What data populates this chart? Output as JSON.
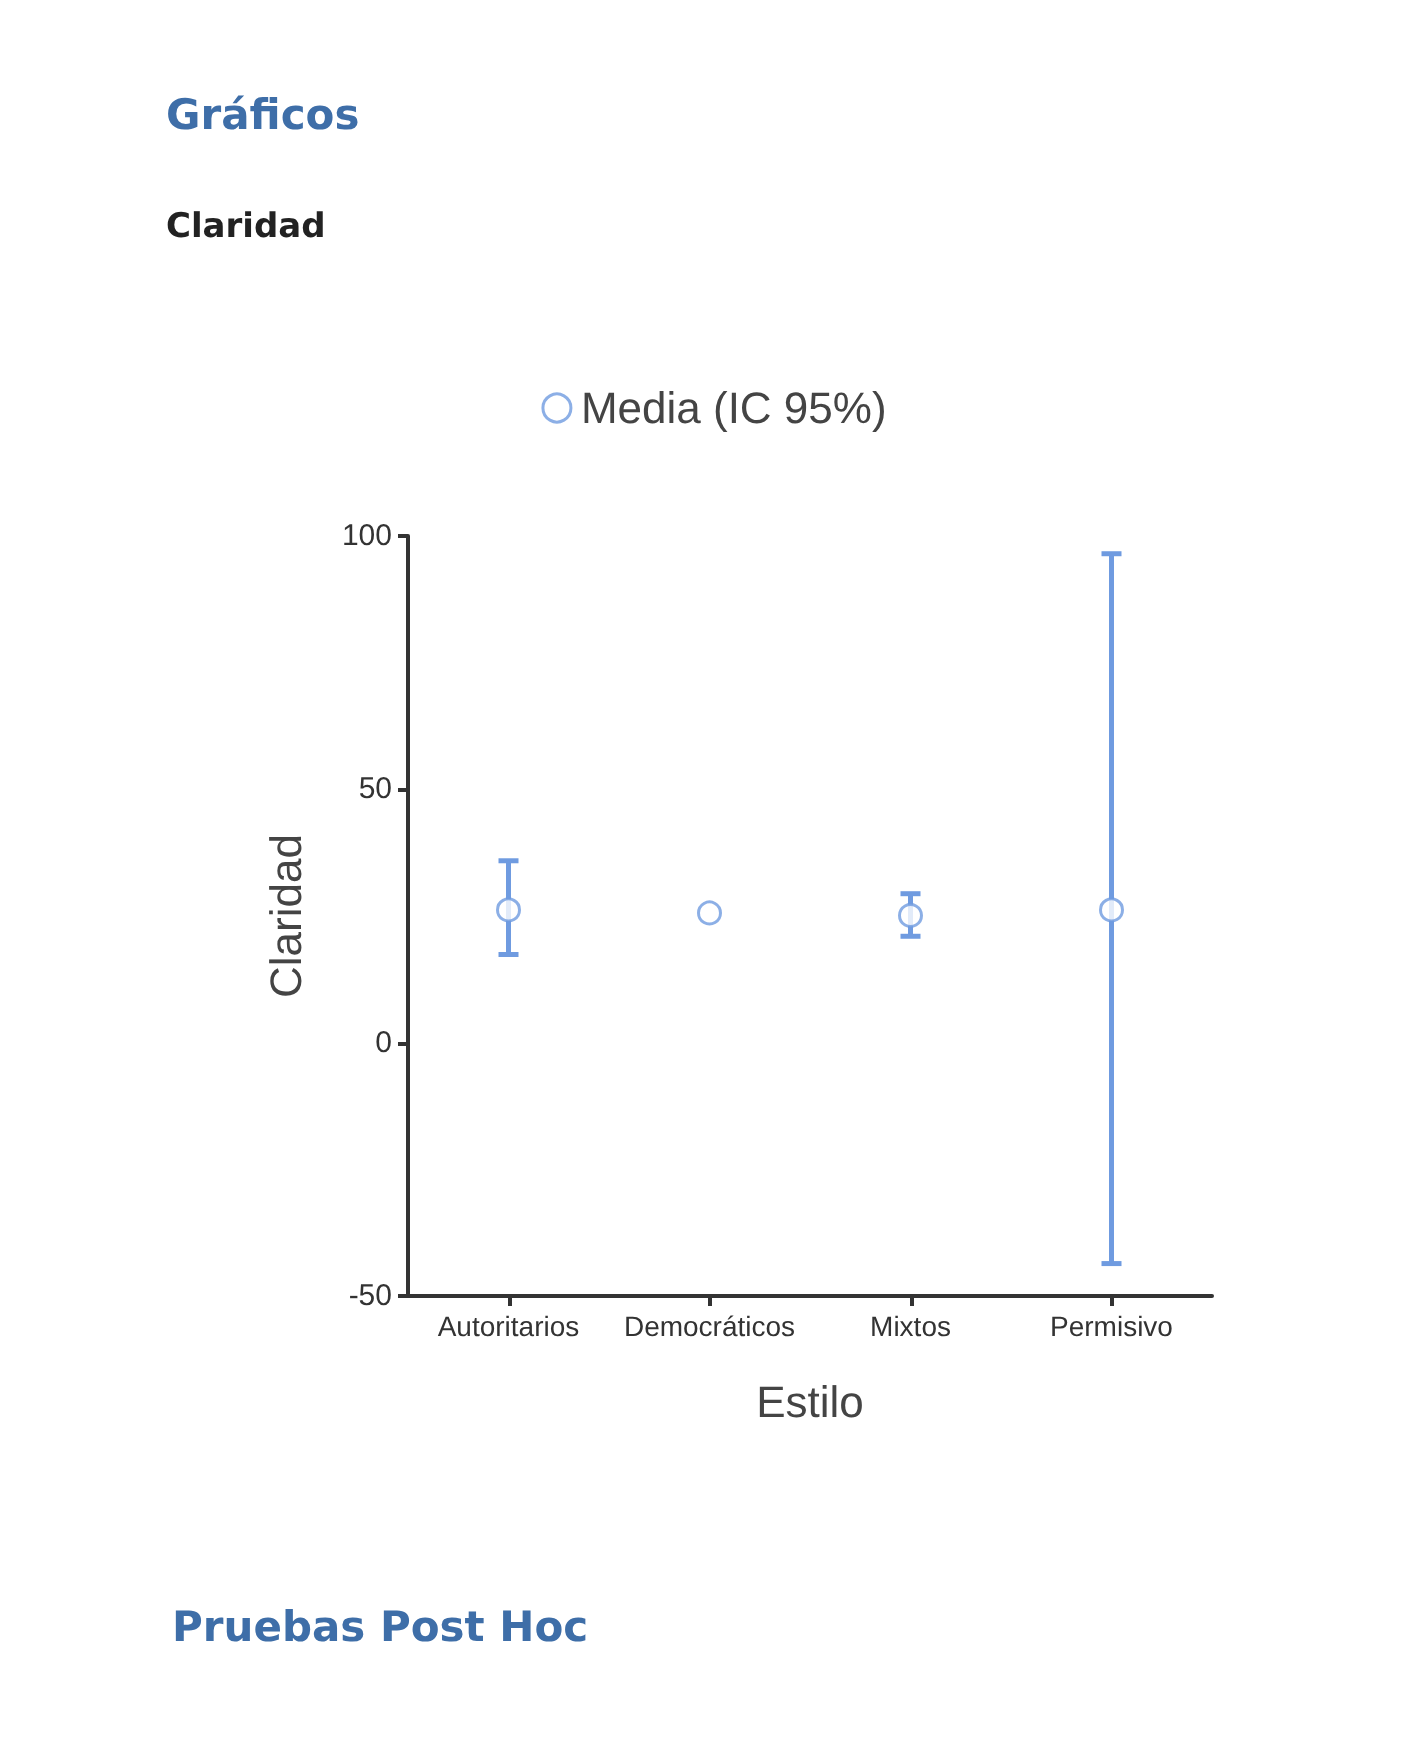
{
  "chart_data": {
    "type": "scatter",
    "title": "Gráficos",
    "subtitle": "Claridad",
    "annotations": [
      "Pruebas Post Hoc"
    ],
    "xlabel": "Estilo",
    "ylabel": "Claridad",
    "categories": [
      "Autoritarios",
      "Democráticos",
      "Mixtos",
      "Permisivo"
    ],
    "series": [
      {
        "name": "Media (IC 95%)",
        "color": "#6f9be0",
        "values": [
          26.2,
          25.6,
          25.1,
          26.2
        ],
        "errors": [
          [
            17.4,
            35.9
          ],
          null,
          [
            21.0,
            29.4
          ],
          [
            -43.6,
            96.5
          ]
        ]
      }
    ],
    "ylim": [
      -50,
      100
    ],
    "yticks": [
      -50,
      0,
      50,
      100
    ],
    "legend": "top",
    "marker": "circle",
    "grid": false
  }
}
